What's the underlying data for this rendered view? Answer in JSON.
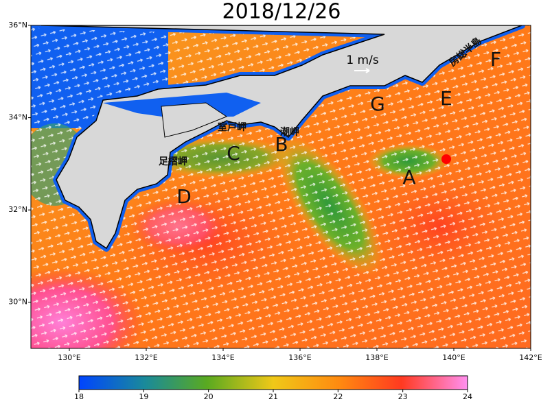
{
  "title": "2018/12/26",
  "map": {
    "xlim": [
      129,
      142
    ],
    "ylim": [
      29,
      36
    ],
    "lat_ticks": [
      {
        "value": 36,
        "label": "36°N"
      },
      {
        "value": 34,
        "label": "34°N"
      },
      {
        "value": 32,
        "label": "32°N"
      },
      {
        "value": 30,
        "label": "30°N"
      }
    ],
    "lon_ticks": [
      {
        "value": 130,
        "label": "130°E"
      },
      {
        "value": 132,
        "label": "132°E"
      },
      {
        "value": 134,
        "label": "134°E"
      },
      {
        "value": 136,
        "label": "136°E"
      },
      {
        "value": 138,
        "label": "138°E"
      },
      {
        "value": 140,
        "label": "140°E"
      },
      {
        "value": 142,
        "label": "142°E"
      }
    ]
  },
  "scale_label": "1 m/s",
  "regions": [
    "A",
    "B",
    "C",
    "D",
    "E",
    "F",
    "G"
  ],
  "capes": [
    "足摺岬",
    "室戸岬",
    "潮岬"
  ],
  "peninsula": "房総半島",
  "colorbar": {
    "lim": [
      18,
      24
    ],
    "ticks": [
      18,
      19,
      20,
      21,
      22,
      23,
      24
    ]
  }
}
